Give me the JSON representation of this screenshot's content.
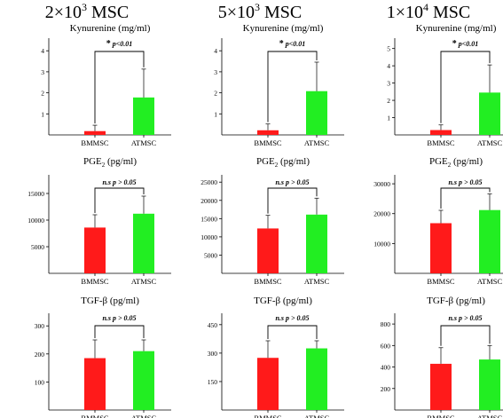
{
  "columns": [
    {
      "base": "2×10",
      "sup": "3",
      "rest": " MSC"
    },
    {
      "base": "5×10",
      "sup": "3",
      "rest": " MSC"
    },
    {
      "base": "1×10",
      "sup": "4",
      "rest": " MSC"
    }
  ],
  "colors": {
    "bmmsc": "#ff1a1a",
    "atmsc": "#22ee22",
    "axis": "#000000"
  },
  "chart_data": [
    {
      "type": "bar",
      "title": "Kynurenine (mg/ml)",
      "categories": [
        "BMMSC",
        "ATMSC"
      ],
      "values": [
        0.18,
        1.78
      ],
      "errors": [
        0.28,
        1.35
      ],
      "ylim": [
        0,
        4.6
      ],
      "yticks": [
        1,
        2,
        3,
        4
      ],
      "annotation": {
        "star": "*",
        "text": "p<0.01"
      }
    },
    {
      "type": "bar",
      "title": "Kynurenine (mg/ml)",
      "categories": [
        "BMMSC",
        "ATMSC"
      ],
      "values": [
        0.22,
        2.08
      ],
      "errors": [
        0.3,
        1.38
      ],
      "ylim": [
        0,
        4.6
      ],
      "yticks": [
        1,
        2,
        3,
        4
      ],
      "annotation": {
        "star": "*",
        "text": "p<0.01"
      }
    },
    {
      "type": "bar",
      "title": "Kynurenine (mg/ml)",
      "categories": [
        "BMMSC",
        "ATMSC"
      ],
      "values": [
        0.28,
        2.45
      ],
      "errors": [
        0.3,
        1.6
      ],
      "ylim": [
        0,
        5.6
      ],
      "yticks": [
        1,
        2,
        3,
        4,
        5
      ],
      "annotation": {
        "star": "*",
        "text": "p<0.01"
      }
    },
    {
      "type": "bar",
      "title_base": "PGE",
      "title_sub": "2",
      "title_rest": " (pg/ml)",
      "categories": [
        "BMMSC",
        "ATMSC"
      ],
      "values": [
        8600,
        11200
      ],
      "errors": [
        2400,
        3300
      ],
      "ylim": [
        0,
        18500
      ],
      "yticks": [
        5000,
        10000,
        15000
      ],
      "annotation": {
        "star": "",
        "text": "n.s p > 0.05"
      }
    },
    {
      "type": "bar",
      "title_base": "PGE",
      "title_sub": "2",
      "title_rest": " (pg/ml)",
      "categories": [
        "BMMSC",
        "ATMSC"
      ],
      "values": [
        12300,
        16100
      ],
      "errors": [
        3600,
        4500
      ],
      "ylim": [
        0,
        27000
      ],
      "yticks": [
        5000,
        10000,
        15000,
        20000,
        25000
      ],
      "annotation": {
        "star": "",
        "text": "n.s p > 0.05"
      }
    },
    {
      "type": "bar",
      "title_base": "PGE",
      "title_sub": "2",
      "title_rest": " (pg/ml)",
      "categories": [
        "BMMSC",
        "ATMSC"
      ],
      "values": [
        16800,
        21200
      ],
      "errors": [
        4300,
        5400
      ],
      "ylim": [
        0,
        33000
      ],
      "yticks": [
        10000,
        20000,
        30000
      ],
      "annotation": {
        "star": "",
        "text": "n.s p > 0.05"
      }
    },
    {
      "type": "bar",
      "title": "TGF-β  (pg/ml)",
      "categories": [
        "BMMSC",
        "ATMSC"
      ],
      "values": [
        185,
        210
      ],
      "errors": [
        65,
        40
      ],
      "ylim": [
        0,
        345
      ],
      "yticks": [
        100,
        200,
        300
      ],
      "annotation": {
        "star": "",
        "text": "n.s p > 0.05"
      }
    },
    {
      "type": "bar",
      "title": "TGF-β  (pg/ml)",
      "categories": [
        "BMMSC",
        "ATMSC"
      ],
      "values": [
        275,
        325
      ],
      "errors": [
        90,
        40
      ],
      "ylim": [
        0,
        510
      ],
      "yticks": [
        150,
        300,
        450
      ],
      "annotation": {
        "star": "",
        "text": "n.s p > 0.05"
      }
    },
    {
      "type": "bar",
      "title": "TGF-β  (pg/ml)",
      "categories": [
        "BMMSC",
        "ATMSC"
      ],
      "values": [
        430,
        470
      ],
      "errors": [
        150,
        130
      ],
      "ylim": [
        0,
        900
      ],
      "yticks": [
        200,
        400,
        600,
        800
      ],
      "annotation": {
        "star": "",
        "text": "n.s p > 0.05"
      }
    }
  ]
}
